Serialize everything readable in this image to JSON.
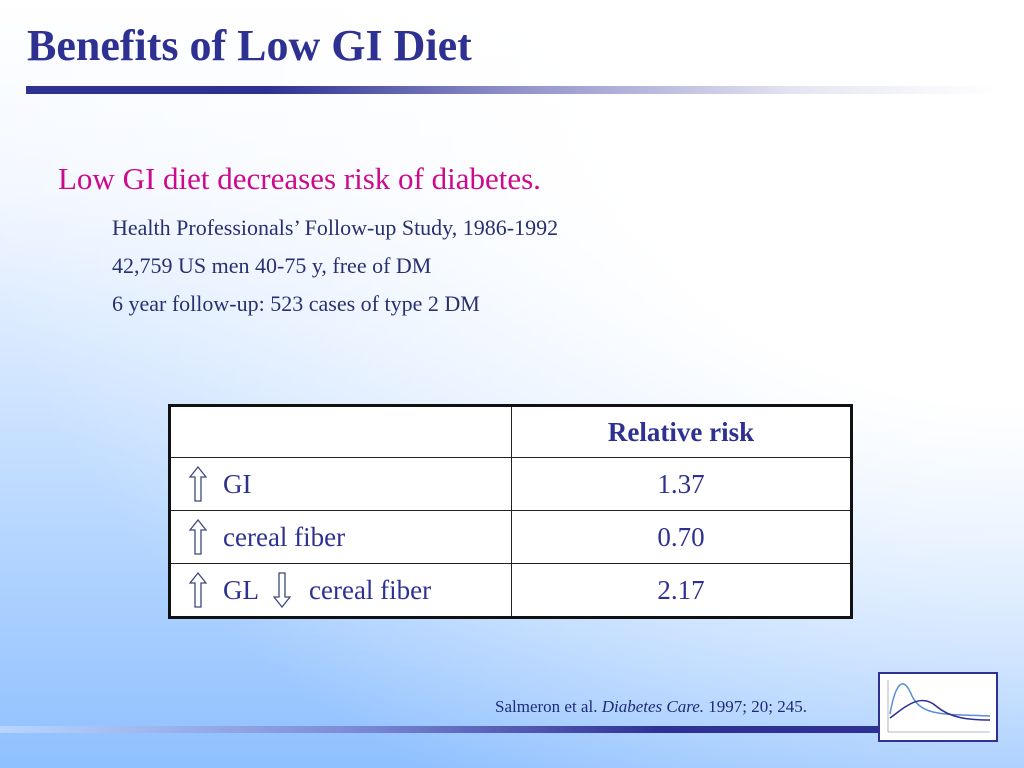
{
  "slide": {
    "title": "Benefits of Low GI Diet",
    "heading": "Low GI diet decreases risk of diabetes.",
    "study_lines": [
      "Health Professionals’ Follow-up Study, 1986-1992",
      "42,759 US men 40-75 y, free of DM",
      "6 year follow-up: 523 cases of type 2 DM"
    ]
  },
  "table": {
    "header": [
      "",
      "Relative risk"
    ],
    "rows": [
      {
        "arrow1": "up-arrow-icon",
        "label1": "GI",
        "arrow2": "",
        "label2": "",
        "value": "1.37"
      },
      {
        "arrow1": "up-arrow-icon",
        "label1": "cereal fiber",
        "arrow2": "",
        "label2": "",
        "value": "0.70"
      },
      {
        "arrow1": "up-arrow-icon",
        "label1": "GL",
        "arrow2": "down-arrow-icon",
        "label2": "cereal fiber",
        "value": "2.17"
      }
    ]
  },
  "citation": {
    "authors": "Salmeron et al.",
    "journal": "Diabetes Care.",
    "ref": "1997; 20; 245."
  },
  "logo": {
    "name": "glucose-curve-logo",
    "colors": [
      "#2e3192",
      "#5a8fd6"
    ]
  },
  "colors": {
    "title": "#2e3192",
    "heading": "#cc0a8c",
    "body_text": "#28306f",
    "table_text": "#2e3192"
  }
}
